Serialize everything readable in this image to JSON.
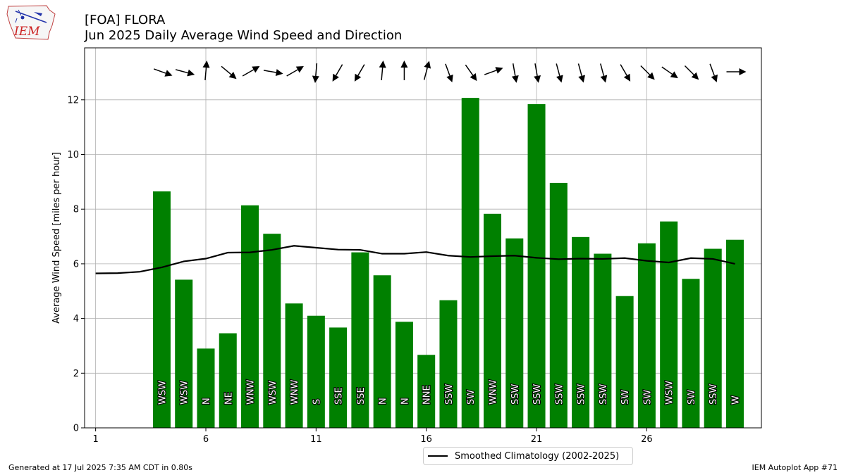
{
  "header": {
    "title_line1": "[FOA] FLORA",
    "title_line2": "Jun 2025 Daily Average Wind Speed and Direction"
  },
  "logo": {
    "text": "IEM"
  },
  "footer": {
    "left": "Generated at 17 Jul 2025 7:35 AM CDT in 0.80s",
    "right": "IEM Autoplot App #71"
  },
  "legend": {
    "label": "Smoothed Climatology (2002-2025)"
  },
  "colors": {
    "bar": "#008000",
    "line": "#000000",
    "grid": "#b0b0b0"
  },
  "chart_data": {
    "type": "bar",
    "ylabel": "Average Wind Speed [miles per hour]",
    "xlabel": "",
    "ylim": [
      0,
      13.9
    ],
    "xlim": [
      0.5,
      31.2
    ],
    "grid": true,
    "xticks": [
      1,
      6,
      11,
      16,
      21,
      26
    ],
    "yticks": [
      0,
      2,
      4,
      6,
      8,
      10,
      12
    ],
    "bars": [
      {
        "day": 4,
        "speed": 8.65,
        "dir": "WSW"
      },
      {
        "day": 5,
        "speed": 5.42,
        "dir": "WSW"
      },
      {
        "day": 6,
        "speed": 2.9,
        "dir": "N"
      },
      {
        "day": 7,
        "speed": 3.46,
        "dir": "NE"
      },
      {
        "day": 8,
        "speed": 8.14,
        "dir": "WNW"
      },
      {
        "day": 9,
        "speed": 7.1,
        "dir": "WSW"
      },
      {
        "day": 10,
        "speed": 4.55,
        "dir": "WNW"
      },
      {
        "day": 11,
        "speed": 4.1,
        "dir": "S"
      },
      {
        "day": 12,
        "speed": 3.67,
        "dir": "SSE"
      },
      {
        "day": 13,
        "speed": 6.42,
        "dir": "SSE"
      },
      {
        "day": 14,
        "speed": 5.58,
        "dir": "N"
      },
      {
        "day": 15,
        "speed": 3.88,
        "dir": "N"
      },
      {
        "day": 16,
        "speed": 2.67,
        "dir": "NNE"
      },
      {
        "day": 17,
        "speed": 4.67,
        "dir": "SSW"
      },
      {
        "day": 18,
        "speed": 12.07,
        "dir": "SW"
      },
      {
        "day": 19,
        "speed": 7.83,
        "dir": "WNW"
      },
      {
        "day": 20,
        "speed": 6.93,
        "dir": "SSW"
      },
      {
        "day": 21,
        "speed": 11.84,
        "dir": "SSW"
      },
      {
        "day": 22,
        "speed": 8.96,
        "dir": "SSW"
      },
      {
        "day": 23,
        "speed": 6.98,
        "dir": "SSW"
      },
      {
        "day": 24,
        "speed": 6.37,
        "dir": "SSW"
      },
      {
        "day": 25,
        "speed": 4.82,
        "dir": "SW"
      },
      {
        "day": 26,
        "speed": 6.75,
        "dir": "SW"
      },
      {
        "day": 27,
        "speed": 7.55,
        "dir": "WSW"
      },
      {
        "day": 28,
        "speed": 5.45,
        "dir": "SW"
      },
      {
        "day": 29,
        "speed": 6.55,
        "dir": "SSW"
      },
      {
        "day": 30,
        "speed": 6.88,
        "dir": "W"
      }
    ],
    "arrow_angles_deg": [
      20,
      15,
      -85,
      40,
      -30,
      10,
      -30,
      95,
      120,
      120,
      -85,
      -90,
      -75,
      70,
      55,
      -20,
      80,
      80,
      75,
      75,
      75,
      60,
      45,
      35,
      45,
      70,
      0
    ],
    "climatology": {
      "name": "Smoothed Climatology (2002-2025)",
      "x": [
        1,
        2,
        3,
        4,
        5,
        6,
        7,
        8,
        9,
        10,
        11,
        12,
        13,
        14,
        15,
        16,
        17,
        18,
        19,
        20,
        21,
        22,
        23,
        24,
        25,
        26,
        27,
        28,
        29,
        30
      ],
      "y": [
        5.65,
        5.66,
        5.71,
        5.87,
        6.09,
        6.19,
        6.41,
        6.42,
        6.51,
        6.66,
        6.59,
        6.52,
        6.51,
        6.37,
        6.37,
        6.43,
        6.3,
        6.25,
        6.28,
        6.3,
        6.22,
        6.17,
        6.19,
        6.18,
        6.21,
        6.11,
        6.05,
        6.21,
        6.18,
        6.0
      ]
    }
  }
}
